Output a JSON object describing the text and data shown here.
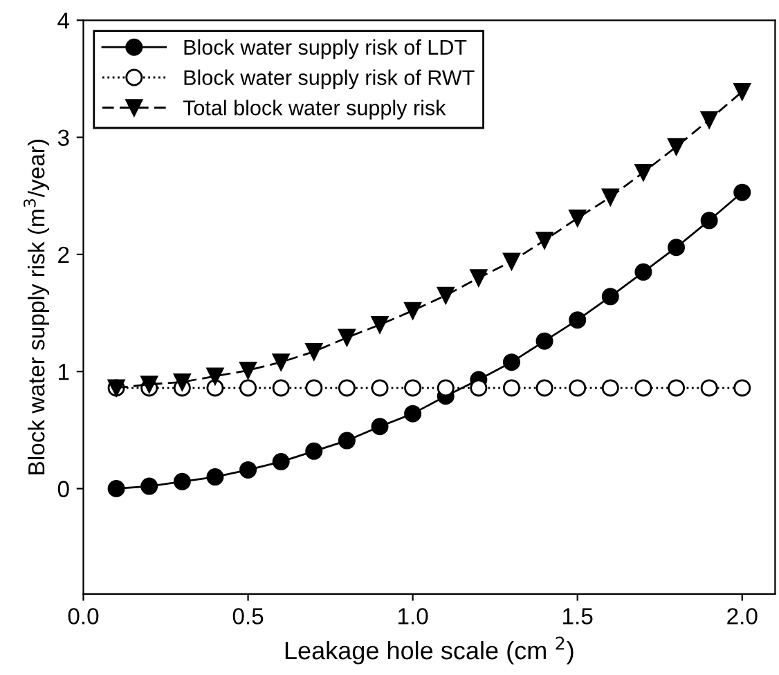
{
  "chart_data": {
    "type": "line",
    "xlabel": "Leakage hole scale (cm $^{2}$)",
    "ylabel": "Block water supply risk (m$^{3}$/year)",
    "x": [
      0.1,
      0.2,
      0.3,
      0.4,
      0.5,
      0.6,
      0.7,
      0.8,
      0.9,
      1.0,
      1.1,
      1.2,
      1.3,
      1.4,
      1.5,
      1.6,
      1.7,
      1.8,
      1.9,
      2.0
    ],
    "series": [
      {
        "name": "Block water supply risk of LDT",
        "color": "#000000",
        "marker": "circle",
        "line_style": "solid",
        "values": [
          0.0,
          0.02,
          0.06,
          0.1,
          0.16,
          0.23,
          0.32,
          0.41,
          0.53,
          0.64,
          0.79,
          0.93,
          1.08,
          1.26,
          1.44,
          1.64,
          1.85,
          2.06,
          2.29,
          2.53
        ]
      },
      {
        "name": "Block water supply risk of RWT",
        "color": "#000000",
        "marker": "circle_open",
        "line_style": "dotted",
        "values": [
          0.86,
          0.86,
          0.86,
          0.86,
          0.86,
          0.86,
          0.86,
          0.86,
          0.86,
          0.86,
          0.86,
          0.86,
          0.86,
          0.86,
          0.86,
          0.86,
          0.86,
          0.86,
          0.86,
          0.86
        ]
      },
      {
        "name": "Total block water supply risk",
        "color": "#000000",
        "marker": "triangle",
        "line_style": "dashed",
        "values": [
          0.86,
          0.89,
          0.91,
          0.96,
          1.01,
          1.08,
          1.17,
          1.29,
          1.4,
          1.52,
          1.65,
          1.8,
          1.94,
          2.12,
          2.31,
          2.49,
          2.7,
          2.92,
          3.15,
          3.39
        ]
      }
    ],
    "xlim": [
      0,
      2.1
    ],
    "ylim": [
      -0.9,
      4
    ],
    "xticks": [
      {
        "value": 0,
        "label": "0.0"
      },
      0.5,
      {
        "value": 1,
        "label": "1.0"
      },
      1.5,
      {
        "value": 2,
        "label": "2.0"
      }
    ],
    "yticks": [
      0,
      1,
      2,
      3,
      4
    ],
    "grid": false,
    "legend": "top left"
  }
}
